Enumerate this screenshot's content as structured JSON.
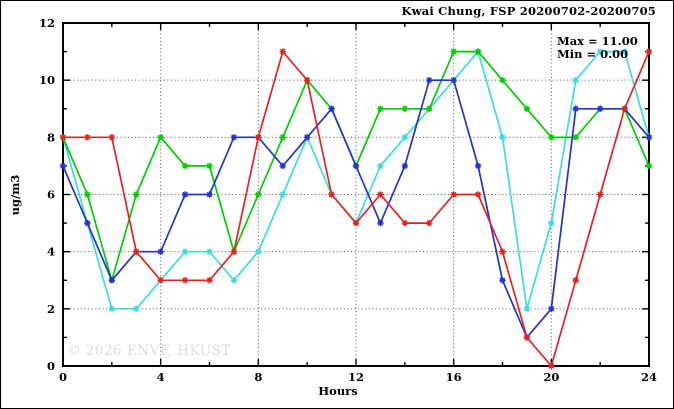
{
  "watermark": "© 2026 ENVF, HKUST",
  "chart_data": {
    "type": "line",
    "title": "Kwai Chung, FSP 20200702-20200705",
    "xlabel": "Hours",
    "ylabel": "ug/m3",
    "xlim": [
      0,
      24
    ],
    "ylim": [
      0,
      12
    ],
    "grid": "dotted",
    "x_gridlines": [
      4,
      8,
      12,
      16,
      20
    ],
    "y_gridlines": [
      2,
      4,
      6,
      8,
      10
    ],
    "x_major_ticks": [
      0,
      4,
      8,
      12,
      16,
      20,
      24
    ],
    "x_minor_ticks": [
      2,
      6,
      10,
      14,
      18,
      22
    ],
    "y_major_ticks": [
      0,
      2,
      4,
      6,
      8,
      10,
      12
    ],
    "y_minor_ticks": [
      1,
      3,
      5,
      7,
      9,
      11
    ],
    "x": [
      0,
      1,
      2,
      3,
      4,
      5,
      6,
      7,
      8,
      9,
      10,
      11,
      12,
      13,
      14,
      15,
      16,
      17,
      18,
      19,
      20,
      21,
      22,
      23,
      24
    ],
    "series": [
      {
        "name": "series-cyan",
        "color": "#3cdcdc",
        "marker": "asterisk",
        "values": [
          8,
          5,
          2,
          2,
          3,
          4,
          4,
          3,
          4,
          6,
          8,
          6,
          5,
          7,
          8,
          9,
          10,
          11,
          8,
          2,
          5,
          10,
          11,
          11,
          8
        ]
      },
      {
        "name": "series-green",
        "color": "#00cc00",
        "marker": "asterisk",
        "values": [
          8,
          6,
          3,
          6,
          8,
          7,
          7,
          4,
          6,
          8,
          10,
          9,
          7,
          9,
          9,
          9,
          11,
          11,
          10,
          9,
          8,
          8,
          9,
          9,
          7
        ]
      },
      {
        "name": "series-blue",
        "color": "#2233cc",
        "marker": "asterisk",
        "values": [
          7,
          5,
          3,
          4,
          4,
          6,
          6,
          8,
          8,
          7,
          8,
          9,
          7,
          5,
          7,
          10,
          10,
          7,
          3,
          1,
          2,
          9,
          9,
          9,
          8
        ]
      },
      {
        "name": "series-red",
        "color": "#e32222",
        "marker": "asterisk",
        "values": [
          8,
          8,
          8,
          4,
          3,
          3,
          3,
          4,
          8,
          11,
          10,
          6,
          5,
          6,
          5,
          5,
          6,
          6,
          4,
          1,
          0,
          3,
          6,
          9,
          11
        ]
      }
    ],
    "annotations": [
      "Max = 11.00",
      "Min = 0.00"
    ],
    "stats": {
      "max": 11.0,
      "min": 0.0
    },
    "annotation_position": "top-right inside"
  }
}
